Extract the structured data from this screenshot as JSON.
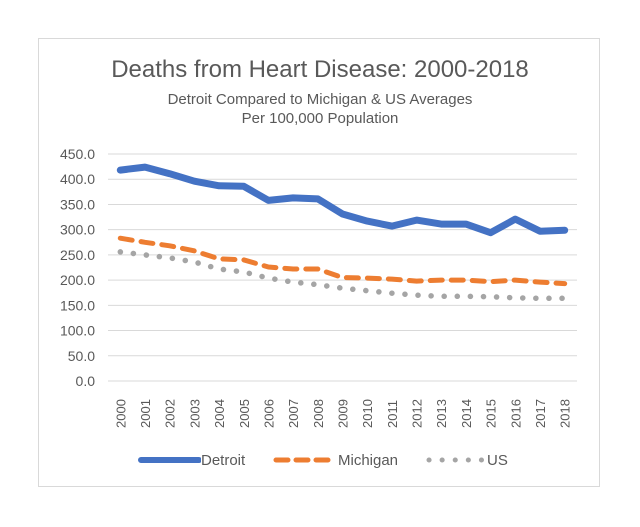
{
  "chart_data": {
    "type": "line",
    "title": "Deaths from Heart Disease: 2000-2018",
    "subtitle": [
      "Detroit Compared to Michigan & US Averages",
      "Per 100,000 Population"
    ],
    "xlabel": "",
    "ylabel": "",
    "categories": [
      "2000",
      "2001",
      "2002",
      "2003",
      "2004",
      "2005",
      "2006",
      "2007",
      "2008",
      "2009",
      "2010",
      "2011",
      "2012",
      "2013",
      "2014",
      "2015",
      "2016",
      "2017",
      "2018"
    ],
    "ylim": [
      0,
      450
    ],
    "yticks": [
      "0.0",
      "50.0",
      "100.0",
      "150.0",
      "200.0",
      "250.0",
      "300.0",
      "350.0",
      "400.0",
      "450.0"
    ],
    "grid": true,
    "legend_position": "bottom",
    "series": [
      {
        "name": "Detroit",
        "color": "#4472c4",
        "style": "solid",
        "values": [
          418,
          424,
          411,
          396,
          387,
          386,
          358,
          363,
          361,
          331,
          317,
          307,
          319,
          311,
          311,
          294,
          321,
          297,
          299
        ]
      },
      {
        "name": "Michigan",
        "color": "#ed7d31",
        "style": "dashed",
        "values": [
          283,
          275,
          268,
          258,
          242,
          240,
          226,
          222,
          222,
          205,
          204,
          202,
          198,
          200,
          200,
          197,
          200,
          196,
          193
        ]
      },
      {
        "name": "US",
        "color": "#a5a5a5",
        "style": "dotted",
        "values": [
          256,
          250,
          244,
          236,
          222,
          216,
          204,
          196,
          191,
          184,
          179,
          174,
          170,
          168,
          168,
          167,
          165,
          164,
          164
        ]
      }
    ]
  }
}
